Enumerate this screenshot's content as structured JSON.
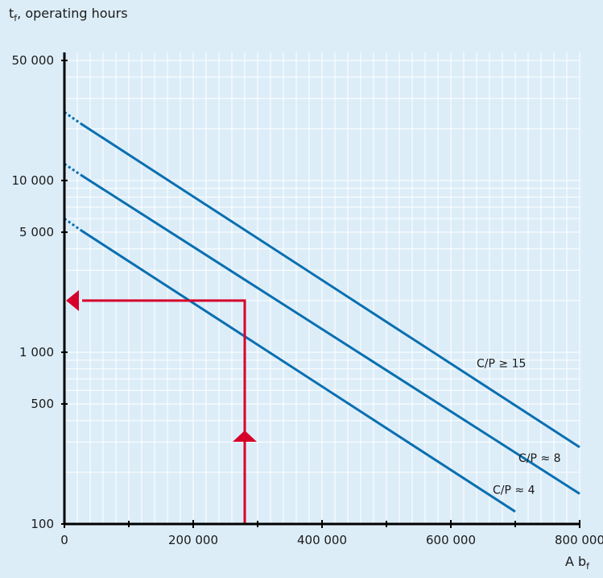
{
  "chart_data": {
    "type": "line",
    "ylabel": "t",
    "ylabel_sub": "f",
    "ylabel_rest": ", operating hours",
    "xlabel": "A b",
    "xlabel_sub": "f",
    "y_scale": "log",
    "ylim": [
      100,
      50000
    ],
    "xlim": [
      0,
      800000
    ],
    "x_ticks": [
      0,
      200000,
      400000,
      600000,
      800000
    ],
    "x_tick_labels": [
      "0",
      "200 000",
      "400 000",
      "600 000",
      "800 000"
    ],
    "y_ticks": [
      100,
      500,
      1000,
      5000,
      10000,
      50000
    ],
    "y_tick_labels": [
      "100",
      "500",
      "1 000",
      "5 000",
      "10 000",
      "50 000"
    ],
    "grid": true,
    "series": [
      {
        "name": "C/P ≥ 15",
        "dashed_start": [
          [
            0,
            25000
          ],
          [
            25000,
            21500
          ]
        ],
        "points": [
          [
            25000,
            21500
          ],
          [
            800000,
            280
          ]
        ],
        "label_at": [
          640000,
          820
        ]
      },
      {
        "name": "C/P ≈ 8",
        "dashed_start": [
          [
            0,
            12500
          ],
          [
            25000,
            10800
          ]
        ],
        "points": [
          [
            25000,
            10800
          ],
          [
            800000,
            150
          ]
        ],
        "label_at": [
          705000,
          230
        ]
      },
      {
        "name": "C/P ≈ 4",
        "dashed_start": [
          [
            0,
            6000
          ],
          [
            25000,
            5150
          ]
        ],
        "points": [
          [
            25000,
            5150
          ],
          [
            700000,
            118
          ]
        ],
        "label_at": [
          665000,
          150
        ]
      }
    ],
    "annotation_path": {
      "x": 280000,
      "y_start": 100,
      "y_turn": 2000,
      "x_end": 0
    },
    "colors": {
      "series": "#0a6fb0",
      "annotation": "#d6002a",
      "grid": "#ffffff",
      "axis": "#000000",
      "background": "#dcedf8"
    }
  }
}
